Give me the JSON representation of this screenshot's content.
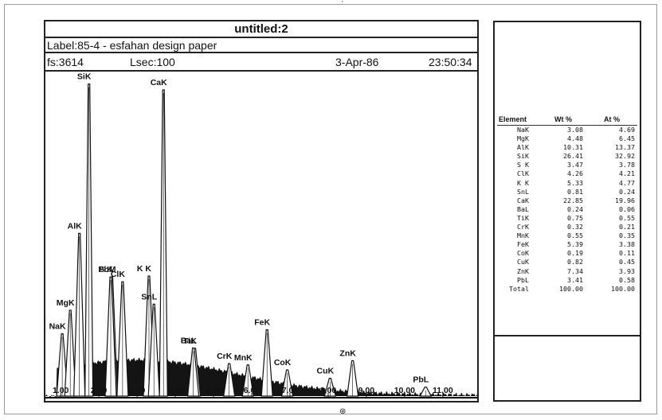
{
  "window": {
    "title": "untitled:2",
    "label": "Label:85-4  -  esfahan design paper",
    "fs": "fs:3614",
    "lsec": "Lsec:100",
    "date": "3-Apr-86",
    "time": "23:50:34"
  },
  "chart_data": {
    "type": "line",
    "title": "",
    "xlabel": "",
    "ylabel": "",
    "xlim": [
      0.6,
      11.9
    ],
    "x_ticks": [
      "1.00",
      "2.00",
      "3.00",
      "4.00",
      "5.00",
      "6.00",
      "7.00",
      "8.00",
      "9.00",
      "10.00",
      "11.00"
    ],
    "grid": false,
    "peaks": [
      {
        "label": "NaK",
        "x": 1.04,
        "rel_height": 0.12
      },
      {
        "label": "MgK",
        "x": 1.25,
        "rel_height": 0.2
      },
      {
        "label": "AlK",
        "x": 1.49,
        "rel_height": 0.47
      },
      {
        "label": "SiK",
        "x": 1.74,
        "rel_height": 1.0
      },
      {
        "label": "PbM",
        "x": 2.34,
        "rel_height": 0.3
      },
      {
        "label": "S K",
        "x": 2.31,
        "rel_height": 0.3
      },
      {
        "label": "ClK",
        "x": 2.62,
        "rel_height": 0.28
      },
      {
        "label": "K K",
        "x": 3.31,
        "rel_height": 0.3
      },
      {
        "label": "SnL",
        "x": 3.44,
        "rel_height": 0.2
      },
      {
        "label": "CaK",
        "x": 3.69,
        "rel_height": 0.97
      },
      {
        "label": "TiK",
        "x": 4.51,
        "rel_height": 0.06
      },
      {
        "label": "BaL",
        "x": 4.47,
        "rel_height": 0.06
      },
      {
        "label": "CrK",
        "x": 5.41,
        "rel_height": 0.03
      },
      {
        "label": "MnK",
        "x": 5.9,
        "rel_height": 0.04
      },
      {
        "label": "FeK",
        "x": 6.4,
        "rel_height": 0.18
      },
      {
        "label": "CoK",
        "x": 6.93,
        "rel_height": 0.05
      },
      {
        "label": "CuK",
        "x": 8.05,
        "rel_height": 0.04
      },
      {
        "label": "ZnK",
        "x": 8.64,
        "rel_height": 0.11
      },
      {
        "label": "PbL",
        "x": 10.55,
        "rel_height": 0.025
      }
    ]
  },
  "table": {
    "headers": [
      "Element",
      "Wt %",
      "At %"
    ],
    "rows": [
      [
        "NaK",
        "3.08",
        "4.69"
      ],
      [
        "MgK",
        "4.48",
        "6.45"
      ],
      [
        "AlK",
        "10.31",
        "13.37"
      ],
      [
        "SiK",
        "26.41",
        "32.92"
      ],
      [
        "S K",
        "3.47",
        "3.78"
      ],
      [
        "ClK",
        "4.26",
        "4.21"
      ],
      [
        "K K",
        "5.33",
        "4.77"
      ],
      [
        "SnL",
        "0.81",
        "0.24"
      ],
      [
        "CaK",
        "22.85",
        "19.96"
      ],
      [
        "BaL",
        "0.24",
        "0.06"
      ],
      [
        "TiK",
        "0.75",
        "0.55"
      ],
      [
        "CrK",
        "0.32",
        "0.21"
      ],
      [
        "MnK",
        "0.55",
        "0.35"
      ],
      [
        "FeK",
        "5.39",
        "3.38"
      ],
      [
        "CoK",
        "0.19",
        "0.11"
      ],
      [
        "CuK",
        "0.82",
        "0.45"
      ],
      [
        "ZnK",
        "7.34",
        "3.93"
      ],
      [
        "PbL",
        "3.41",
        "0.58"
      ],
      [
        "Total",
        "100.00",
        "100.00"
      ]
    ]
  },
  "icons": {
    "bottom_mark": "registration-mark-icon"
  },
  "colors": {
    "ink": "#111111",
    "paper": "#ffffff",
    "spectrum_fill": "#141414"
  }
}
